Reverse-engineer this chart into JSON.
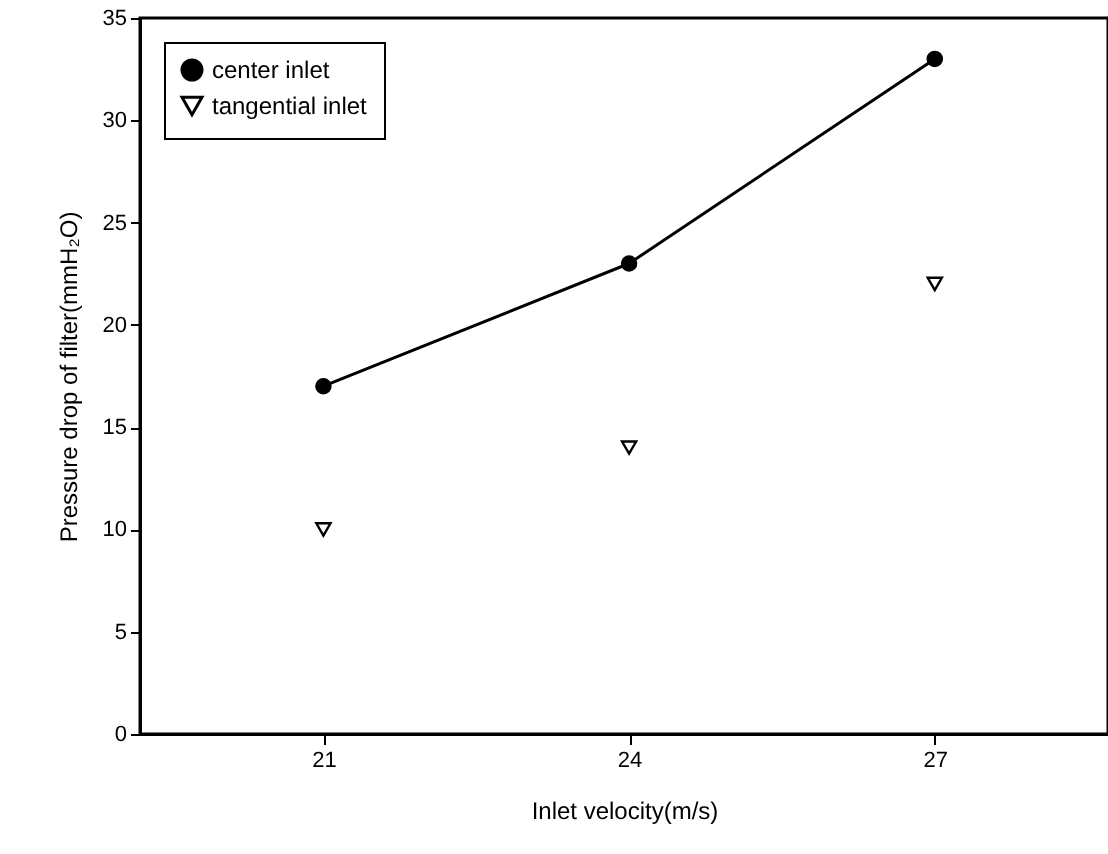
{
  "chart_data": {
    "type": "line",
    "xlabel": "Inlet velocity(m/s)",
    "ylabel": "Pressure drop of filter(mmH₂O)",
    "x": [
      21,
      24,
      27
    ],
    "xlim": [
      19.2,
      28.7
    ],
    "xticks": [
      21,
      24,
      27
    ],
    "ylim": [
      0,
      35
    ],
    "yticks": [
      0,
      5,
      10,
      15,
      20,
      25,
      30,
      35
    ],
    "legend": "top left",
    "grid": false,
    "series": [
      {
        "name": "center inlet",
        "color": "#000000",
        "marker": "circle",
        "values": [
          17,
          23,
          33
        ]
      },
      {
        "name": "tangential inlet",
        "type": "scatter",
        "color": "#000000",
        "marker": "triangle",
        "values": [
          10,
          14,
          22
        ]
      }
    ]
  }
}
